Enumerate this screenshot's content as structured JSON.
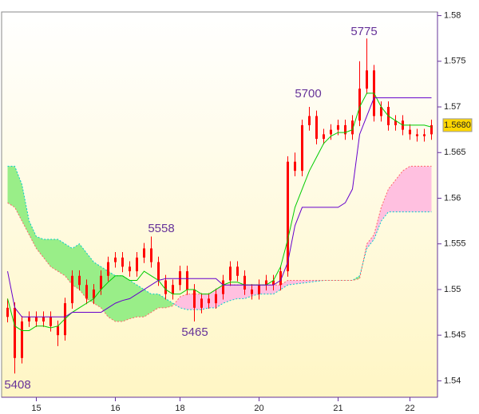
{
  "chart_data": {
    "type": "candlestick",
    "xlim": [
      -0.5,
      59.5
    ],
    "xticks": [
      {
        "value": 4,
        "label": "15"
      },
      {
        "value": 15,
        "label": "16"
      },
      {
        "value": 24,
        "label": "18"
      },
      {
        "value": 35,
        "label": "20"
      },
      {
        "value": 46,
        "label": "21"
      },
      {
        "value": 56,
        "label": "22"
      }
    ],
    "ylim": [
      1.5382,
      1.5804
    ],
    "yticks": [
      1.54,
      1.545,
      1.55,
      1.555,
      1.56,
      1.565,
      1.57,
      1.575,
      1.58
    ],
    "candles": {
      "color": "#ff0000",
      "open": [
        1.547,
        1.548,
        1.5425,
        1.5465,
        1.547,
        1.5465,
        1.547,
        1.546,
        1.545,
        1.5485,
        1.5515,
        1.5505,
        1.549,
        1.55,
        1.5515,
        1.553,
        1.5535,
        1.5525,
        1.552,
        1.5535,
        1.5545,
        1.553,
        1.551,
        1.5495,
        1.5505,
        1.552,
        1.55,
        1.548,
        1.549,
        1.5485,
        1.5495,
        1.551,
        1.5525,
        1.5515,
        1.55,
        1.5495,
        1.5505,
        1.551,
        1.5505,
        1.552,
        1.564,
        1.563,
        1.568,
        1.569,
        1.5665,
        1.567,
        1.5675,
        1.568,
        1.567,
        1.5685,
        1.572,
        1.574,
        1.569,
        1.57,
        1.568,
        1.5685,
        1.5675,
        1.567,
        1.5668,
        1.567
      ],
      "high": [
        1.549,
        1.5486,
        1.5471,
        1.5476,
        1.5476,
        1.5476,
        1.5476,
        1.5466,
        1.5491,
        1.5521,
        1.5521,
        1.5511,
        1.5506,
        1.5521,
        1.5536,
        1.5541,
        1.5541,
        1.5531,
        1.5541,
        1.5551,
        1.5558,
        1.5536,
        1.5516,
        1.5511,
        1.5526,
        1.5526,
        1.5506,
        1.5496,
        1.5496,
        1.5501,
        1.5516,
        1.5531,
        1.5531,
        1.5521,
        1.5506,
        1.5511,
        1.5516,
        1.5516,
        1.5526,
        1.5646,
        1.565,
        1.5686,
        1.57,
        1.5696,
        1.5676,
        1.5681,
        1.5686,
        1.5686,
        1.5691,
        1.575,
        1.5775,
        1.5746,
        1.5706,
        1.5706,
        1.5691,
        1.5691,
        1.5681,
        1.5676,
        1.5676,
        1.5686
      ],
      "low": [
        1.5464,
        1.5408,
        1.5419,
        1.5459,
        1.5459,
        1.5459,
        1.5454,
        1.5438,
        1.5444,
        1.5479,
        1.5499,
        1.5484,
        1.5484,
        1.5494,
        1.5509,
        1.5524,
        1.5519,
        1.5514,
        1.5514,
        1.5529,
        1.5524,
        1.5504,
        1.5489,
        1.5489,
        1.5499,
        1.5494,
        1.5465,
        1.5474,
        1.5479,
        1.5479,
        1.5489,
        1.5504,
        1.5509,
        1.5494,
        1.5489,
        1.5489,
        1.5499,
        1.5499,
        1.5499,
        1.5514,
        1.5624,
        1.5624,
        1.5674,
        1.5659,
        1.5659,
        1.5664,
        1.5669,
        1.5664,
        1.5664,
        1.5679,
        1.5714,
        1.5684,
        1.5684,
        1.5674,
        1.5674,
        1.5669,
        1.5664,
        1.5662,
        1.5662,
        1.5664
      ],
      "close": [
        1.548,
        1.5425,
        1.5465,
        1.547,
        1.5465,
        1.547,
        1.546,
        1.545,
        1.5485,
        1.5515,
        1.5505,
        1.549,
        1.55,
        1.5515,
        1.553,
        1.5535,
        1.5525,
        1.552,
        1.5535,
        1.5545,
        1.553,
        1.551,
        1.5495,
        1.5505,
        1.552,
        1.55,
        1.548,
        1.549,
        1.5485,
        1.5495,
        1.551,
        1.5525,
        1.5515,
        1.55,
        1.5495,
        1.5505,
        1.551,
        1.5505,
        1.552,
        1.564,
        1.563,
        1.568,
        1.569,
        1.5665,
        1.567,
        1.5675,
        1.568,
        1.567,
        1.5685,
        1.572,
        1.574,
        1.569,
        1.57,
        1.568,
        1.5685,
        1.5675,
        1.567,
        1.5668,
        1.567,
        1.568
      ]
    },
    "cloud": {
      "up_color": "#99ee88",
      "down_color": "#ffc0e0",
      "span_a": {
        "color": "#00cccc",
        "values": [
          1.5635,
          1.5635,
          1.5615,
          1.5575,
          1.5558,
          1.5555,
          1.5555,
          1.5555,
          1.555,
          1.5545,
          1.555,
          1.554,
          1.553,
          1.5525,
          1.552,
          1.5515,
          1.5515,
          1.551,
          1.5505,
          1.55,
          1.5495,
          1.5495,
          1.549,
          1.5485,
          1.548,
          1.5478,
          1.5478,
          1.5478,
          1.548,
          1.548,
          1.5485,
          1.5488,
          1.549,
          1.549,
          1.5493,
          1.5495,
          1.5495,
          1.5495,
          1.55,
          1.5505,
          1.5506,
          1.5507,
          1.5508,
          1.5509,
          1.551,
          1.551,
          1.551,
          1.551,
          1.551,
          1.5515,
          1.5545,
          1.5555,
          1.5575,
          1.5585,
          1.5585,
          1.5585,
          1.5585,
          1.5585,
          1.5585,
          1.5585
        ]
      },
      "span_b": {
        "color": "#ff6666",
        "values": [
          1.5595,
          1.559,
          1.5575,
          1.556,
          1.5545,
          1.5535,
          1.5525,
          1.552,
          1.5515,
          1.5505,
          1.55,
          1.549,
          1.5485,
          1.548,
          1.547,
          1.5465,
          1.5465,
          1.5468,
          1.547,
          1.547,
          1.5475,
          1.548,
          1.548,
          1.5482,
          1.5492,
          1.5495,
          1.5495,
          1.5495,
          1.5495,
          1.55,
          1.5505,
          1.5505,
          1.5505,
          1.5505,
          1.5505,
          1.5505,
          1.5505,
          1.5505,
          1.5505,
          1.551,
          1.551,
          1.551,
          1.551,
          1.551,
          1.551,
          1.551,
          1.551,
          1.551,
          1.551,
          1.5512,
          1.555,
          1.556,
          1.559,
          1.561,
          1.562,
          1.563,
          1.5635,
          1.5635,
          1.5635,
          1.5635
        ]
      }
    },
    "lines": [
      {
        "color": "#00cc00",
        "values": [
          1.549,
          1.546,
          1.5455,
          1.5455,
          1.546,
          1.546,
          1.5458,
          1.546,
          1.5468,
          1.5475,
          1.548,
          1.5485,
          1.549,
          1.55,
          1.5508,
          1.5515,
          1.5515,
          1.551,
          1.551,
          1.552,
          1.5515,
          1.551,
          1.55,
          1.5495,
          1.5495,
          1.55,
          1.55,
          1.5495,
          1.5495,
          1.55,
          1.5505,
          1.5508,
          1.5508,
          1.5505,
          1.5505,
          1.5505,
          1.5505,
          1.551,
          1.5525,
          1.5555,
          1.559,
          1.561,
          1.563,
          1.5645,
          1.566,
          1.5668,
          1.5672,
          1.5672,
          1.5675,
          1.57,
          1.5715,
          1.5715,
          1.57,
          1.569,
          1.5685,
          1.568,
          1.568,
          1.568,
          1.568,
          1.5678
        ]
      },
      {
        "color": "#6600cc",
        "values": [
          1.552,
          1.548,
          1.547,
          1.547,
          1.547,
          1.547,
          1.547,
          1.547,
          1.547,
          1.5475,
          1.5475,
          1.5475,
          1.5475,
          1.5475,
          1.548,
          1.5485,
          1.5488,
          1.549,
          1.5495,
          1.55,
          1.5505,
          1.551,
          1.5512,
          1.5512,
          1.5512,
          1.5512,
          1.5512,
          1.5512,
          1.5512,
          1.5512,
          1.5505,
          1.5505,
          1.5505,
          1.5505,
          1.5505,
          1.5505,
          1.5505,
          1.5505,
          1.551,
          1.553,
          1.557,
          1.559,
          1.559,
          1.559,
          1.559,
          1.559,
          1.559,
          1.5595,
          1.561,
          1.567,
          1.569,
          1.571,
          1.571,
          1.571,
          1.571,
          1.571,
          1.571,
          1.571,
          1.571,
          1.571
        ]
      }
    ],
    "annotations": [
      "5408",
      "5558",
      "5465",
      "5700",
      "5775"
    ],
    "last_price": {
      "value": 1.568,
      "label": "1.5680"
    }
  }
}
